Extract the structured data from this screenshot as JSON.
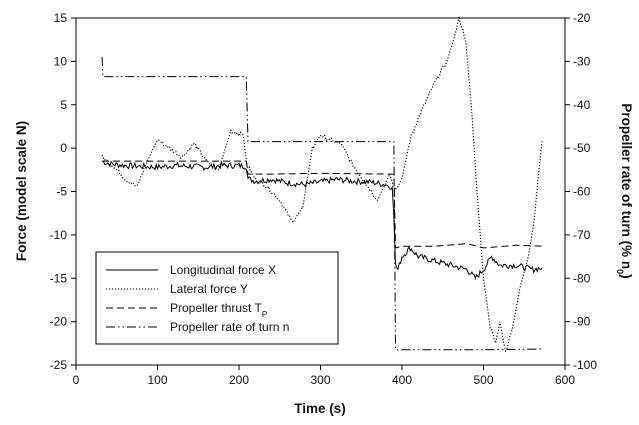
{
  "chart_data": {
    "type": "line",
    "xlabel": "Time (s)",
    "ylabel": "Force (model scale N)",
    "y2label": "Propeller rate of turn (% n",
    "y2label_sub": "0",
    "y2label_close": ")",
    "xlim": [
      0,
      600
    ],
    "ylim": [
      -25,
      15
    ],
    "y2lim": [
      -100,
      -20
    ],
    "x_ticks": [
      0,
      100,
      200,
      300,
      400,
      500,
      600
    ],
    "y_ticks": [
      -25,
      -20,
      -15,
      -10,
      -5,
      0,
      5,
      10,
      15
    ],
    "y2_ticks": [
      -100,
      -90,
      -80,
      -70,
      -60,
      -50,
      -40,
      -30,
      -20
    ],
    "grid": false,
    "legend_position": "lower-left",
    "series": [
      {
        "name": "Longitudinal force X",
        "axis": "left",
        "style": "solid",
        "noise": 0.35,
        "x": [
          32,
          40,
          60,
          80,
          100,
          120,
          140,
          160,
          180,
          200,
          209,
          211,
          220,
          240,
          260,
          280,
          300,
          320,
          340,
          360,
          380,
          388,
          390,
          392,
          395,
          400,
          410,
          420,
          440,
          460,
          480,
          490,
          500,
          510,
          520,
          540,
          560,
          572
        ],
        "y": [
          -1.5,
          -1.8,
          -2.0,
          -2.1,
          -2.2,
          -2.0,
          -2.1,
          -2.2,
          -2.0,
          -2.0,
          -2.1,
          -3.5,
          -3.8,
          -3.6,
          -4.0,
          -4.2,
          -3.9,
          -3.6,
          -3.8,
          -3.9,
          -4.2,
          -4.5,
          -8,
          -13.5,
          -14.0,
          -12.5,
          -11.5,
          -12.5,
          -13.0,
          -13.5,
          -14.0,
          -15.0,
          -14.0,
          -12.5,
          -13.5,
          -13.5,
          -14.0,
          -13.8
        ]
      },
      {
        "name": "Lateral force Y",
        "axis": "left",
        "style": "dotted",
        "noise": 0.25,
        "x": [
          32,
          45,
          60,
          75,
          85,
          100,
          115,
          130,
          145,
          160,
          175,
          190,
          205,
          210,
          220,
          235,
          250,
          265,
          278,
          290,
          300,
          310,
          325,
          340,
          355,
          370,
          385,
          392,
          400,
          410,
          420,
          430,
          440,
          455,
          465,
          470,
          478,
          485,
          492,
          500,
          508,
          515,
          520,
          527,
          535,
          545,
          555,
          562,
          567,
          572
        ],
        "y": [
          -1.0,
          -2.0,
          -3.5,
          -4.5,
          -2.0,
          1.0,
          0.0,
          -1.0,
          0.5,
          -1.5,
          -2.5,
          2.0,
          1.5,
          -2.0,
          -3.5,
          -4.5,
          -6.0,
          -8.5,
          -7.0,
          0.0,
          1.5,
          1.0,
          0.5,
          -2.0,
          -4.0,
          -6.0,
          -3.0,
          -5.0,
          -3.5,
          1.0,
          3.5,
          5.5,
          7.5,
          10.0,
          13.0,
          15.0,
          12.5,
          5.0,
          -5.0,
          -15.0,
          -20.5,
          -22.5,
          -20.0,
          -23.5,
          -21.0,
          -16.0,
          -12.5,
          -8.5,
          -3.5,
          1.0
        ]
      },
      {
        "name": "Propeller thrust T",
        "name_sub": "P",
        "axis": "left",
        "style": "dashed",
        "noise": 0,
        "x": [
          32,
          209,
          211,
          240,
          300,
          380,
          390,
          392,
          400,
          440,
          480,
          500,
          540,
          572
        ],
        "y": [
          -1.5,
          -1.5,
          -3.0,
          -3.0,
          -2.9,
          -3.0,
          -3.0,
          -11.5,
          -11.3,
          -11.3,
          -11.0,
          -11.5,
          -11.2,
          -11.3
        ]
      },
      {
        "name": "Propeller rate of turn n",
        "axis": "right",
        "style": "dashdotdot",
        "noise": 0,
        "x": [
          32,
          33,
          35,
          209,
          211,
          300,
          390,
          392,
          393,
          450,
          500,
          572
        ],
        "y": [
          -29.0,
          -33.5,
          -33.5,
          -33.5,
          -48.5,
          -48.5,
          -48.5,
          -96.5,
          -96.5,
          -96.5,
          -96.5,
          -96.3
        ]
      }
    ]
  }
}
